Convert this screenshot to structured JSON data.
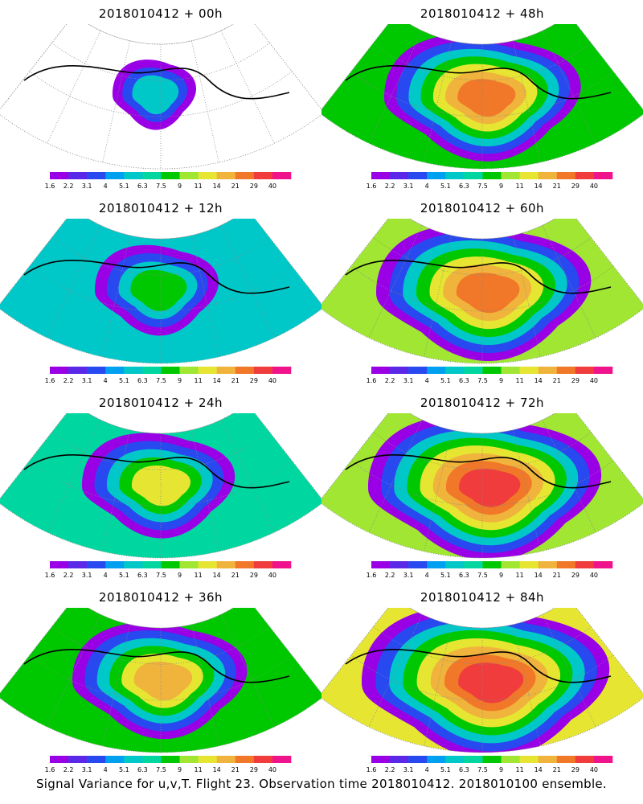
{
  "caption": "Signal Variance for u,v,T. Flight 23. Observation time 2018010412. 2018010100 ensemble.",
  "colorbar": {
    "labels": [
      "1.6",
      "2.2",
      "3.1",
      "4",
      "5.1",
      "6.3",
      "7.5",
      "9",
      "11",
      "14",
      "21",
      "29",
      "40"
    ],
    "colors": [
      "#9a00e6",
      "#5a28e6",
      "#2848f0",
      "#00a0f0",
      "#00c8c8",
      "#00d7a0",
      "#00c800",
      "#a0e632",
      "#e6e632",
      "#f0b43c",
      "#f07828",
      "#f03c3c",
      "#f0148c"
    ]
  },
  "panels": [
    {
      "title": "2018010412 + 00h",
      "level": 0.0
    },
    {
      "title": "2018010412 + 48h",
      "level": 0.62
    },
    {
      "title": "2018010412 + 12h",
      "level": 0.22
    },
    {
      "title": "2018010412 + 60h",
      "level": 0.72
    },
    {
      "title": "2018010412 + 24h",
      "level": 0.38
    },
    {
      "title": "2018010412 + 72h",
      "level": 0.82
    },
    {
      "title": "2018010412 + 36h",
      "level": 0.5
    },
    {
      "title": "2018010412 + 84h",
      "level": 0.9
    }
  ]
}
